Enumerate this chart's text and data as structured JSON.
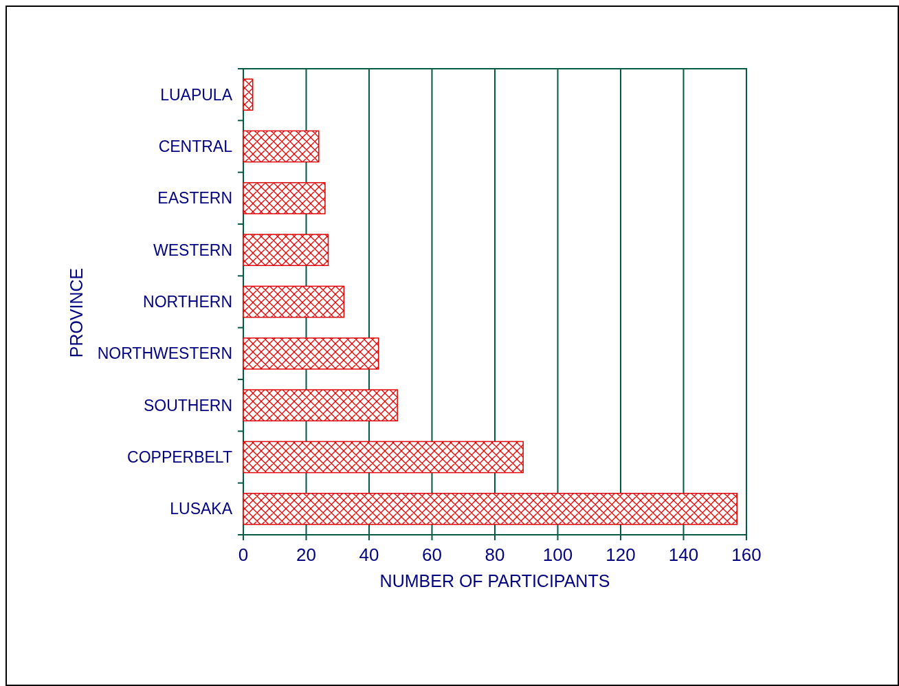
{
  "chart_data": {
    "type": "bar",
    "orientation": "horizontal",
    "xlabel": "NUMBER OF PARTICIPANTS",
    "ylabel": "PROVINCE",
    "categories": [
      "LUAPULA",
      "CENTRAL",
      "EASTERN",
      "WESTERN",
      "NORTHERN",
      "NORTHWESTERN",
      "SOUTHERN",
      "COPPERBELT",
      "LUSAKA"
    ],
    "values": [
      3,
      24,
      26,
      27,
      32,
      43,
      49,
      89,
      157
    ],
    "color": "#e00000",
    "xlim": [
      0,
      160
    ],
    "xticks": [
      0,
      20,
      40,
      60,
      80,
      100,
      120,
      140,
      160
    ],
    "grid": "x"
  }
}
